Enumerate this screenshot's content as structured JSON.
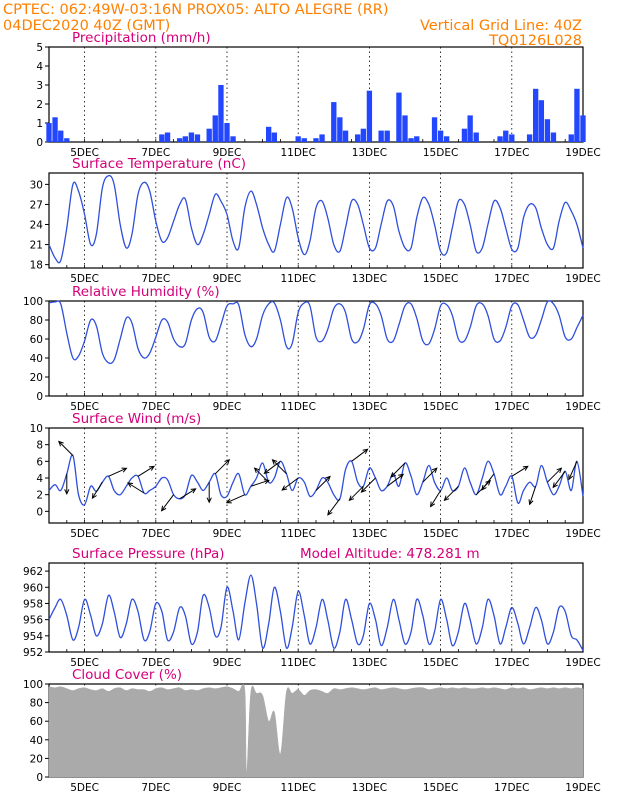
{
  "header": {
    "line1_left": "CPTEC:   062:49W-03:16N   PROX05: ALTO ALEGRE (RR)",
    "line2_left": "04DEC2020 40Z (GMT)",
    "line2_right": "Vertical Grid Line: 40Z",
    "line3_right": "TQ0126L028"
  },
  "colors": {
    "header_text": "#ff8000",
    "panel_title": "#d4007a",
    "series_line": "#2f4fdc",
    "precip_bar": "#2347ff",
    "cloud_fill": "#aaaaaa",
    "wind_arrow": "#000000"
  },
  "chart_data": [
    {
      "id": "precipitation",
      "type": "bar",
      "title": "Precipitation (mm/h)",
      "ylim": [
        0,
        5
      ],
      "yticks": [
        0,
        1,
        2,
        3,
        4,
        5
      ],
      "xtick_labels": [
        "5DEC",
        "7DEC",
        "9DEC",
        "11DEC",
        "13DEC",
        "15DEC",
        "17DEC",
        "19DEC"
      ],
      "x_days": [
        4.0,
        4.17,
        4.33,
        4.5,
        7.17,
        7.33,
        7.67,
        7.83,
        8.0,
        8.17,
        8.5,
        8.67,
        8.83,
        9.0,
        9.17,
        10.17,
        10.33,
        11.0,
        11.17,
        11.5,
        11.67,
        12.0,
        12.17,
        12.33,
        12.67,
        12.83,
        13.0,
        13.33,
        13.5,
        13.83,
        14.0,
        14.17,
        14.33,
        14.83,
        15.0,
        15.17,
        15.67,
        15.83,
        16.0,
        16.67,
        16.83,
        17.0,
        17.5,
        17.67,
        17.83,
        18.0,
        18.17,
        18.67,
        18.83,
        19.0
      ],
      "values": [
        1.0,
        1.3,
        0.6,
        0.2,
        0.4,
        0.5,
        0.2,
        0.3,
        0.5,
        0.4,
        0.7,
        1.4,
        3.0,
        1.0,
        0.3,
        0.8,
        0.5,
        0.3,
        0.2,
        0.2,
        0.4,
        2.1,
        1.3,
        0.6,
        0.4,
        0.7,
        2.7,
        0.6,
        0.6,
        2.6,
        1.4,
        0.2,
        0.3,
        1.3,
        0.6,
        0.3,
        0.7,
        1.4,
        0.5,
        0.3,
        0.6,
        0.4,
        0.4,
        2.8,
        2.2,
        1.2,
        0.5,
        0.4,
        2.8,
        1.4
      ]
    },
    {
      "id": "temperature",
      "type": "line",
      "title": "Surface Temperature (nC)",
      "ylim": [
        17.5,
        31.7
      ],
      "yticks": [
        18,
        21,
        24,
        27,
        30
      ],
      "xtick_labels": [
        "5DEC",
        "7DEC",
        "9DEC",
        "11DEC",
        "13DEC",
        "15DEC",
        "17DEC",
        "19DEC"
      ],
      "x_days": [
        4.0,
        4.17,
        4.33,
        4.5,
        4.67,
        4.83,
        5.0,
        5.17,
        5.33,
        5.5,
        5.67,
        5.83,
        6.0,
        6.17,
        6.33,
        6.5,
        6.67,
        6.83,
        7.0,
        7.17,
        7.33,
        7.5,
        7.67,
        7.83,
        8.0,
        8.17,
        8.33,
        8.5,
        8.67,
        8.83,
        9.0,
        9.17,
        9.33,
        9.5,
        9.67,
        9.83,
        10.0,
        10.17,
        10.33,
        10.5,
        10.67,
        10.83,
        11.0,
        11.17,
        11.33,
        11.5,
        11.67,
        11.83,
        12.0,
        12.17,
        12.33,
        12.5,
        12.67,
        12.83,
        13.0,
        13.17,
        13.33,
        13.5,
        13.67,
        13.83,
        14.0,
        14.17,
        14.33,
        14.5,
        14.67,
        14.83,
        15.0,
        15.17,
        15.33,
        15.5,
        15.67,
        15.83,
        16.0,
        16.17,
        16.33,
        16.5,
        16.67,
        16.83,
        17.0,
        17.17,
        17.33,
        17.5,
        17.67,
        17.83,
        18.0,
        18.17,
        18.33,
        18.5,
        18.67,
        18.83,
        19.0
      ],
      "values": [
        21.0,
        19.0,
        18.6,
        23.5,
        30.0,
        29.0,
        25.5,
        21.0,
        22.5,
        29.5,
        31.3,
        30.0,
        24.0,
        20.5,
        22.5,
        28.5,
        30.3,
        29.0,
        24.5,
        21.5,
        22.0,
        24.5,
        27.0,
        27.8,
        23.5,
        21.0,
        22.5,
        25.5,
        28.5,
        27.5,
        25.5,
        21.5,
        20.5,
        26.5,
        29.0,
        27.0,
        23.5,
        21.0,
        20.0,
        24.0,
        28.0,
        26.5,
        22.0,
        19.5,
        21.5,
        26.5,
        27.5,
        25.0,
        21.0,
        20.0,
        23.5,
        27.5,
        27.0,
        24.0,
        20.5,
        20.5,
        24.0,
        27.5,
        26.8,
        23.0,
        20.5,
        20.5,
        25.0,
        28.0,
        27.0,
        24.0,
        20.0,
        19.8,
        23.5,
        27.5,
        27.0,
        24.0,
        20.0,
        20.5,
        24.0,
        27.5,
        26.5,
        23.5,
        20.3,
        20.5,
        25.0,
        27.0,
        26.5,
        23.5,
        21.0,
        20.5,
        24.5,
        27.3,
        26.0,
        24.0,
        20.5
      ]
    },
    {
      "id": "humidity",
      "type": "line",
      "title": "Relative Humidity (%)",
      "ylim": [
        0,
        100
      ],
      "yticks": [
        0,
        20,
        40,
        60,
        80,
        100
      ],
      "xtick_labels": [
        "5DEC",
        "7DEC",
        "9DEC",
        "11DEC",
        "13DEC",
        "15DEC",
        "17DEC",
        "19DEC"
      ],
      "x_days": [
        4.0,
        4.17,
        4.33,
        4.5,
        4.67,
        4.83,
        5.0,
        5.17,
        5.33,
        5.5,
        5.67,
        5.83,
        6.0,
        6.17,
        6.33,
        6.5,
        6.67,
        6.83,
        7.0,
        7.17,
        7.33,
        7.5,
        7.67,
        7.83,
        8.0,
        8.17,
        8.33,
        8.5,
        8.67,
        8.83,
        9.0,
        9.17,
        9.33,
        9.5,
        9.67,
        9.83,
        10.0,
        10.17,
        10.33,
        10.5,
        10.67,
        10.83,
        11.0,
        11.17,
        11.33,
        11.5,
        11.67,
        11.83,
        12.0,
        12.17,
        12.33,
        12.5,
        12.67,
        12.83,
        13.0,
        13.17,
        13.33,
        13.5,
        13.67,
        13.83,
        14.0,
        14.17,
        14.33,
        14.5,
        14.67,
        14.83,
        15.0,
        15.17,
        15.33,
        15.5,
        15.67,
        15.83,
        16.0,
        16.17,
        16.33,
        16.5,
        16.67,
        16.83,
        17.0,
        17.17,
        17.33,
        17.5,
        17.67,
        17.83,
        18.0,
        18.17,
        18.33,
        18.5,
        18.67,
        18.83,
        19.0
      ],
      "values": [
        98.0,
        99.0,
        97.0,
        66.0,
        40.0,
        42.0,
        58.0,
        80.0,
        74.0,
        45.0,
        35.0,
        38.0,
        60.0,
        82.0,
        77.0,
        50.0,
        40.0,
        45.0,
        62.0,
        80.0,
        78.0,
        60.0,
        52.0,
        55.0,
        80.0,
        92.0,
        88.0,
        62.0,
        58.0,
        75.0,
        95.0,
        97.0,
        96.0,
        65.0,
        52.0,
        60.0,
        85.0,
        97.0,
        98.0,
        80.0,
        52.0,
        55.0,
        88.0,
        98.0,
        95.0,
        62.0,
        58.0,
        70.0,
        92.0,
        97.0,
        88.0,
        60.0,
        57.0,
        70.0,
        96.0,
        97.0,
        85.0,
        60.0,
        58.0,
        75.0,
        95.0,
        97.0,
        82.0,
        58.0,
        55.0,
        70.0,
        95.0,
        96.0,
        85.0,
        60.0,
        58.0,
        72.0,
        95.0,
        97.0,
        85.0,
        60.0,
        58.0,
        72.0,
        95.0,
        96.0,
        80.0,
        62.0,
        64.0,
        80.0,
        99.0,
        97.0,
        85.0,
        62.0,
        60.0,
        72.0,
        85.0
      ]
    },
    {
      "id": "wind",
      "type": "line",
      "title": "Surface Wind (m/s)",
      "ylim": [
        -1.4,
        10
      ],
      "yticks": [
        0,
        2,
        4,
        6,
        8,
        10
      ],
      "xtick_labels": [
        "5DEC",
        "7DEC",
        "9DEC",
        "11DEC",
        "13DEC",
        "15DEC",
        "17DEC",
        "19DEC"
      ],
      "x_days": [
        4.0,
        4.17,
        4.33,
        4.5,
        4.67,
        4.83,
        5.0,
        5.17,
        5.33,
        5.5,
        5.67,
        5.83,
        6.0,
        6.17,
        6.33,
        6.5,
        6.67,
        6.83,
        7.0,
        7.17,
        7.33,
        7.5,
        7.67,
        7.83,
        8.0,
        8.17,
        8.33,
        8.5,
        8.67,
        8.83,
        9.0,
        9.17,
        9.33,
        9.5,
        9.67,
        9.83,
        10.0,
        10.17,
        10.33,
        10.5,
        10.67,
        10.83,
        11.0,
        11.17,
        11.33,
        11.5,
        11.67,
        11.83,
        12.0,
        12.17,
        12.33,
        12.5,
        12.67,
        12.83,
        13.0,
        13.17,
        13.33,
        13.5,
        13.67,
        13.83,
        14.0,
        14.17,
        14.33,
        14.5,
        14.67,
        14.83,
        15.0,
        15.17,
        15.33,
        15.5,
        15.67,
        15.83,
        16.0,
        16.17,
        16.33,
        16.5,
        16.67,
        16.83,
        17.0,
        17.17,
        17.33,
        17.5,
        17.67,
        17.83,
        18.0,
        18.17,
        18.33,
        18.5,
        18.67,
        18.83,
        19.0
      ],
      "values": [
        2.5,
        3.2,
        2.5,
        4.5,
        6.7,
        2.0,
        0.8,
        3.0,
        2.4,
        3.5,
        4.2,
        2.5,
        2.0,
        3.0,
        4.0,
        4.2,
        2.2,
        2.5,
        3.0,
        4.0,
        3.8,
        2.0,
        1.5,
        2.0,
        4.3,
        3.5,
        2.5,
        3.5,
        4.5,
        2.0,
        1.8,
        3.5,
        4.5,
        2.0,
        3.0,
        4.0,
        5.8,
        3.5,
        4.0,
        6.0,
        4.5,
        2.5,
        4.0,
        3.5,
        1.8,
        2.5,
        4.0,
        3.5,
        2.0,
        1.5,
        5.0,
        6.0,
        3.5,
        3.0,
        5.2,
        4.0,
        2.5,
        3.0,
        4.5,
        3.0,
        5.8,
        4.2,
        2.0,
        3.5,
        5.5,
        3.5,
        2.5,
        4.0,
        2.5,
        3.0,
        5.2,
        3.5,
        2.0,
        4.0,
        6.0,
        4.5,
        2.0,
        3.0,
        4.2,
        1.0,
        2.5,
        3.5,
        3.0,
        5.5,
        3.5,
        2.0,
        3.0,
        4.8,
        2.5,
        6.0,
        1.8
      ]
    },
    {
      "id": "pressure",
      "type": "line",
      "title": "Surface Pressure (hPa)",
      "annotation": "Model Altitude: 478.281 m",
      "ylim": [
        952,
        963
      ],
      "yticks": [
        952,
        954,
        956,
        958,
        960,
        962
      ],
      "xtick_labels": [
        "5DEC",
        "7DEC",
        "9DEC",
        "11DEC",
        "13DEC",
        "15DEC",
        "17DEC",
        "19DEC"
      ],
      "x_days": [
        4.0,
        4.17,
        4.33,
        4.5,
        4.67,
        4.83,
        5.0,
        5.17,
        5.33,
        5.5,
        5.67,
        5.83,
        6.0,
        6.17,
        6.33,
        6.5,
        6.67,
        6.83,
        7.0,
        7.17,
        7.33,
        7.5,
        7.67,
        7.83,
        8.0,
        8.17,
        8.33,
        8.5,
        8.67,
        8.83,
        9.0,
        9.17,
        9.33,
        9.5,
        9.67,
        9.83,
        10.0,
        10.17,
        10.33,
        10.5,
        10.67,
        10.83,
        11.0,
        11.17,
        11.33,
        11.5,
        11.67,
        11.83,
        12.0,
        12.17,
        12.33,
        12.5,
        12.67,
        12.83,
        13.0,
        13.17,
        13.33,
        13.5,
        13.67,
        13.83,
        14.0,
        14.17,
        14.33,
        14.5,
        14.67,
        14.83,
        15.0,
        15.17,
        15.33,
        15.5,
        15.67,
        15.83,
        16.0,
        16.17,
        16.33,
        16.5,
        16.67,
        16.83,
        17.0,
        17.17,
        17.33,
        17.5,
        17.67,
        17.83,
        18.0,
        18.17,
        18.33,
        18.5,
        18.67,
        18.83,
        19.0
      ],
      "values": [
        956.0,
        957.5,
        958.5,
        956.5,
        953.5,
        955.0,
        958.5,
        956.5,
        954.0,
        955.5,
        959.0,
        957.0,
        953.8,
        955.5,
        958.5,
        957.0,
        953.5,
        954.5,
        958.0,
        957.0,
        953.5,
        954.5,
        957.5,
        956.5,
        953.0,
        954.5,
        959.0,
        957.5,
        954.0,
        955.0,
        960.0,
        957.0,
        953.5,
        958.0,
        961.5,
        958.0,
        952.5,
        955.5,
        960.0,
        957.0,
        952.5,
        955.0,
        959.5,
        956.5,
        953.0,
        955.0,
        958.5,
        956.0,
        952.5,
        954.5,
        958.5,
        956.0,
        953.0,
        954.0,
        958.0,
        956.0,
        952.8,
        955.0,
        958.5,
        956.0,
        953.0,
        954.5,
        958.5,
        956.5,
        953.0,
        954.5,
        958.5,
        956.0,
        952.8,
        954.5,
        958.0,
        956.0,
        953.0,
        955.0,
        958.5,
        956.5,
        953.0,
        955.0,
        957.5,
        955.5,
        953.0,
        955.0,
        957.5,
        956.0,
        953.0,
        954.5,
        957.5,
        957.0,
        954.0,
        953.5,
        952.2
      ]
    },
    {
      "id": "cloud_cover",
      "type": "area",
      "title": "Cloud Cover (%)",
      "ylim": [
        0,
        100
      ],
      "yticks": [
        0,
        20,
        40,
        60,
        80,
        100
      ],
      "xtick_labels": [
        "5DEC",
        "7DEC",
        "9DEC",
        "11DEC",
        "13DEC",
        "15DEC",
        "17DEC",
        "19DEC"
      ],
      "x_days": [
        4.0,
        4.17,
        4.33,
        4.5,
        4.67,
        4.83,
        5.0,
        5.17,
        5.33,
        5.5,
        5.67,
        5.83,
        6.0,
        6.17,
        6.33,
        6.5,
        6.67,
        6.83,
        7.0,
        7.17,
        7.33,
        7.5,
        7.67,
        7.83,
        8.0,
        8.17,
        8.33,
        8.5,
        8.67,
        8.83,
        9.0,
        9.17,
        9.33,
        9.5,
        9.55,
        9.67,
        9.83,
        10.0,
        10.17,
        10.33,
        10.5,
        10.67,
        10.83,
        11.0,
        11.17,
        11.33,
        11.5,
        11.67,
        11.83,
        12.0,
        12.17,
        12.33,
        12.5,
        12.67,
        12.83,
        13.0,
        13.17,
        13.33,
        13.5,
        13.67,
        13.83,
        14.0,
        14.17,
        14.33,
        14.5,
        14.67,
        14.83,
        15.0,
        15.17,
        15.33,
        15.5,
        15.67,
        15.83,
        16.0,
        16.17,
        16.33,
        16.5,
        16.67,
        16.83,
        17.0,
        17.17,
        17.33,
        17.5,
        17.67,
        17.83,
        18.0,
        18.17,
        18.33,
        18.5,
        18.67,
        18.83,
        19.0
      ],
      "values": [
        97.0,
        96.0,
        97.0,
        95.0,
        93.0,
        95.0,
        96.0,
        94.0,
        93.0,
        95.0,
        92.0,
        95.0,
        96.0,
        93.0,
        95.0,
        94.0,
        94.0,
        92.0,
        95.0,
        96.0,
        94.0,
        95.0,
        96.0,
        93.0,
        94.0,
        93.0,
        95.0,
        96.0,
        95.0,
        96.0,
        97.0,
        95.0,
        92.0,
        94.0,
        5.0,
        92.0,
        90.0,
        88.0,
        60.0,
        70.0,
        25.0,
        92.0,
        90.0,
        94.0,
        88.0,
        93.0,
        94.0,
        92.0,
        90.0,
        95.0,
        94.0,
        95.0,
        96.0,
        95.0,
        94.0,
        95.0,
        96.0,
        94.0,
        95.0,
        96.0,
        95.0,
        94.0,
        95.0,
        96.0,
        96.0,
        94.0,
        95.0,
        96.0,
        95.0,
        96.0,
        95.0,
        96.0,
        95.0,
        95.0,
        96.0,
        95.0,
        96.0,
        95.0,
        94.0,
        96.0,
        95.0,
        96.0,
        94.0,
        95.0,
        96.0,
        95.0,
        96.0,
        95.0,
        96.0,
        95.0,
        96.0,
        95.0
      ]
    }
  ],
  "wind_arrows": [
    {
      "day": 4.5,
      "u": 0.0,
      "v": -1.0
    },
    {
      "day": 4.67,
      "u": -0.7,
      "v": 0.7
    },
    {
      "day": 5.5,
      "u": -0.5,
      "v": -0.8
    },
    {
      "day": 5.67,
      "u": 0.9,
      "v": 0.4
    },
    {
      "day": 6.5,
      "u": 0.8,
      "v": 0.5
    },
    {
      "day": 6.67,
      "u": -0.8,
      "v": 0.5
    },
    {
      "day": 7.5,
      "u": -0.6,
      "v": -0.8
    },
    {
      "day": 7.67,
      "u": 0.8,
      "v": 0.5
    },
    {
      "day": 8.5,
      "u": 0.0,
      "v": -1.0
    },
    {
      "day": 8.67,
      "u": 0.7,
      "v": 0.7
    },
    {
      "day": 9.5,
      "u": -0.9,
      "v": -0.4
    },
    {
      "day": 9.67,
      "u": 0.9,
      "v": 0.3
    },
    {
      "day": 10.17,
      "u": -0.7,
      "v": 0.7
    },
    {
      "day": 10.5,
      "u": -0.8,
      "v": -0.6
    },
    {
      "day": 10.67,
      "u": -0.7,
      "v": 0.7
    },
    {
      "day": 11.0,
      "u": -0.8,
      "v": -0.6
    },
    {
      "day": 11.5,
      "u": 0.7,
      "v": 0.7
    },
    {
      "day": 12.17,
      "u": -0.6,
      "v": -0.8
    },
    {
      "day": 12.5,
      "u": 0.8,
      "v": 0.6
    },
    {
      "day": 12.83,
      "u": -0.7,
      "v": -0.7
    },
    {
      "day": 13.17,
      "u": -0.7,
      "v": -0.7
    },
    {
      "day": 13.5,
      "u": 0.8,
      "v": 0.6
    },
    {
      "day": 14.0,
      "u": -0.7,
      "v": -0.7
    },
    {
      "day": 14.5,
      "u": 0.7,
      "v": 0.7
    },
    {
      "day": 15.0,
      "u": -0.5,
      "v": -0.8
    },
    {
      "day": 15.5,
      "u": -0.7,
      "v": -0.7
    },
    {
      "day": 16.0,
      "u": 0.7,
      "v": 0.7
    },
    {
      "day": 16.5,
      "u": -0.6,
      "v": -0.8
    },
    {
      "day": 17.0,
      "u": 0.8,
      "v": 0.5
    },
    {
      "day": 17.67,
      "u": -0.3,
      "v": -0.9
    },
    {
      "day": 18.0,
      "u": 0.7,
      "v": 0.7
    },
    {
      "day": 18.5,
      "u": -0.6,
      "v": -0.8
    },
    {
      "day": 18.83,
      "u": -0.4,
      "v": -0.9
    }
  ]
}
